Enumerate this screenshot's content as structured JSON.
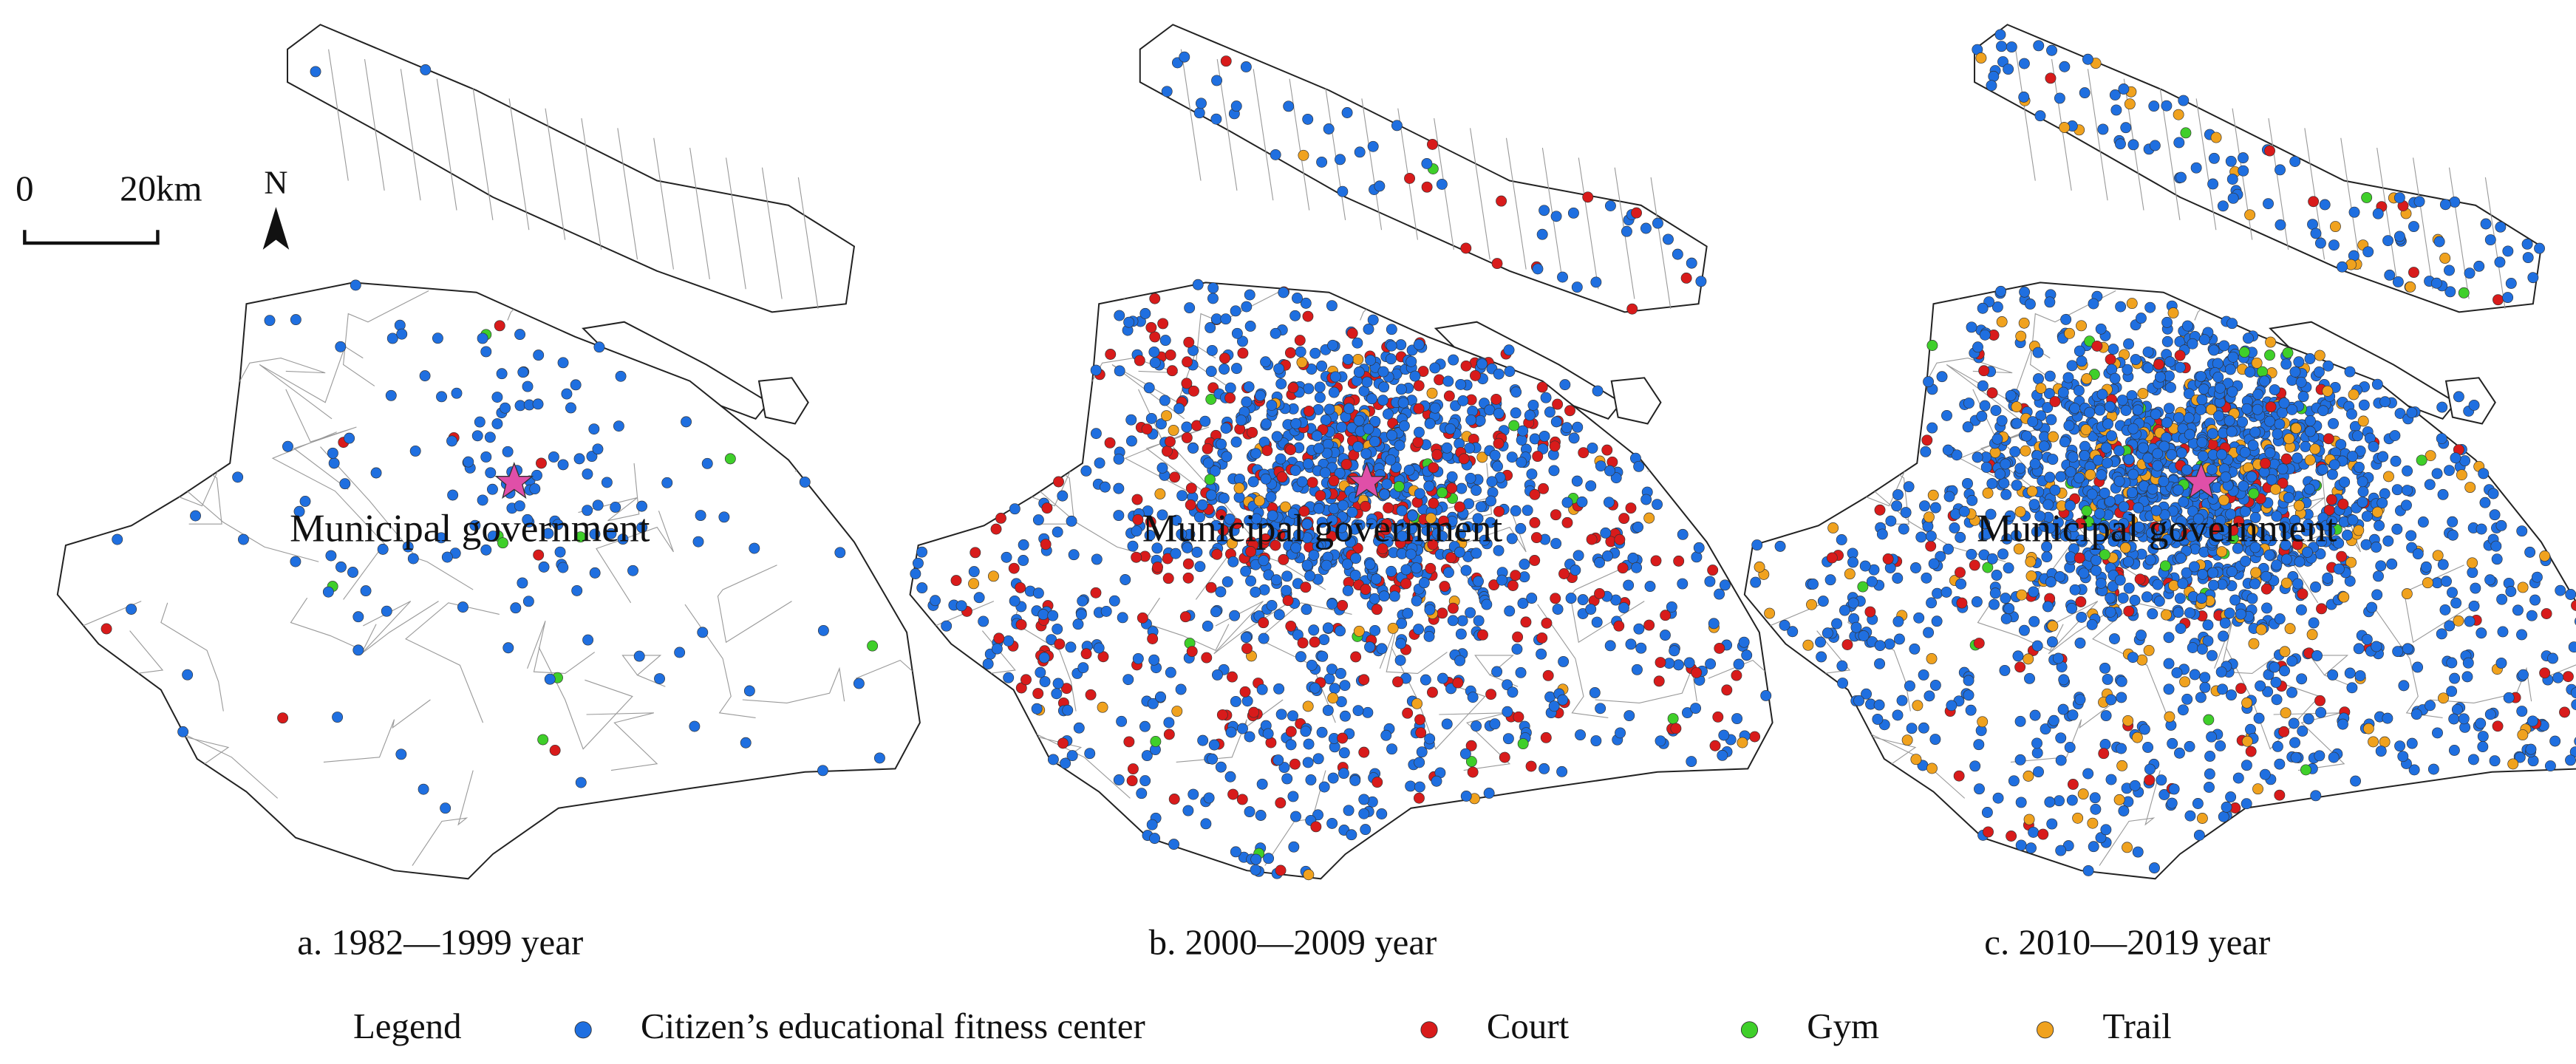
{
  "scale_bar": {
    "start": "0",
    "end": "20km"
  },
  "north_arrow": "N",
  "panels": [
    {
      "caption": "a. 1982—1999 year",
      "marker_label": "Municipal government"
    },
    {
      "caption": "b. 2000—2009 year",
      "marker_label": "Municipal government"
    },
    {
      "caption": "c. 2010—2019 year",
      "marker_label": "Municipal government"
    }
  ],
  "legend": {
    "title": "Legend",
    "items": [
      {
        "label": "Citizen’s educational fitness center",
        "color": "#1f6fe0"
      },
      {
        "label": "Court",
        "color": "#d81b1b"
      },
      {
        "label": "Gym",
        "color": "#3fcf2a"
      },
      {
        "label": "Trail",
        "color": "#f0a21e"
      }
    ]
  }
}
